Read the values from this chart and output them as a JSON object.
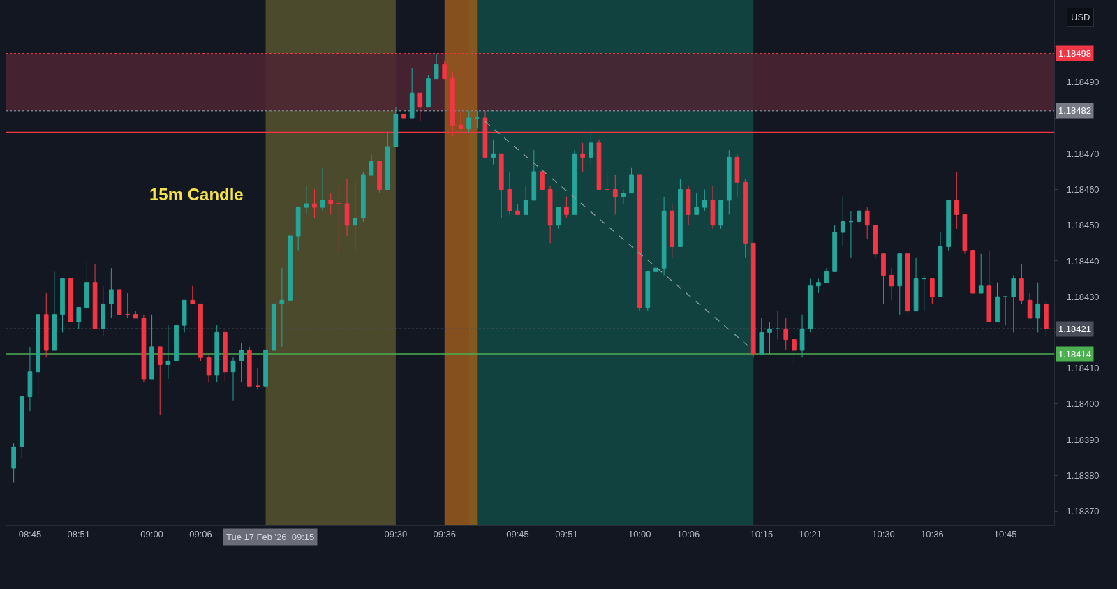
{
  "chart_data": {
    "type": "candlestick",
    "x": [
      "2026-02-17T08:43",
      "2026-02-17T08:44",
      "2026-02-17T08:45",
      "2026-02-17T08:46",
      "2026-02-17T08:47",
      "2026-02-17T08:48",
      "2026-02-17T08:49",
      "2026-02-17T08:50",
      "2026-02-17T08:51",
      "2026-02-17T08:52",
      "2026-02-17T08:53",
      "2026-02-17T08:54",
      "2026-02-17T08:55",
      "2026-02-17T08:56",
      "2026-02-17T08:57",
      "2026-02-17T08:58",
      "2026-02-17T08:59",
      "2026-02-17T09:00",
      "2026-02-17T09:01",
      "2026-02-17T09:02",
      "2026-02-17T09:03",
      "2026-02-17T09:04",
      "2026-02-17T09:05",
      "2026-02-17T09:06",
      "2026-02-17T09:07",
      "2026-02-17T09:08",
      "2026-02-17T09:09",
      "2026-02-17T09:10",
      "2026-02-17T09:11",
      "2026-02-17T09:12",
      "2026-02-17T09:13",
      "2026-02-17T09:14",
      "2026-02-17T09:15",
      "2026-02-17T09:16",
      "2026-02-17T09:17",
      "2026-02-17T09:18",
      "2026-02-17T09:19",
      "2026-02-17T09:20",
      "2026-02-17T09:21",
      "2026-02-17T09:22",
      "2026-02-17T09:23",
      "2026-02-17T09:24",
      "2026-02-17T09:25",
      "2026-02-17T09:26",
      "2026-02-17T09:27",
      "2026-02-17T09:28",
      "2026-02-17T09:29",
      "2026-02-17T09:30",
      "2026-02-17T09:31",
      "2026-02-17T09:32",
      "2026-02-17T09:33",
      "2026-02-17T09:34",
      "2026-02-17T09:35",
      "2026-02-17T09:36",
      "2026-02-17T09:37",
      "2026-02-17T09:38",
      "2026-02-17T09:39",
      "2026-02-17T09:40",
      "2026-02-17T09:41",
      "2026-02-17T09:42",
      "2026-02-17T09:43",
      "2026-02-17T09:44",
      "2026-02-17T09:45",
      "2026-02-17T09:46",
      "2026-02-17T09:47",
      "2026-02-17T09:48",
      "2026-02-17T09:49",
      "2026-02-17T09:50",
      "2026-02-17T09:51",
      "2026-02-17T09:52",
      "2026-02-17T09:53",
      "2026-02-17T09:54",
      "2026-02-17T09:55",
      "2026-02-17T09:56",
      "2026-02-17T09:57",
      "2026-02-17T09:58",
      "2026-02-17T09:59",
      "2026-02-17T10:00",
      "2026-02-17T10:01",
      "2026-02-17T10:02",
      "2026-02-17T10:03",
      "2026-02-17T10:04",
      "2026-02-17T10:05",
      "2026-02-17T10:06",
      "2026-02-17T10:07",
      "2026-02-17T10:08",
      "2026-02-17T10:09",
      "2026-02-17T10:10",
      "2026-02-17T10:11",
      "2026-02-17T10:12",
      "2026-02-17T10:13",
      "2026-02-17T10:14",
      "2026-02-17T10:15",
      "2026-02-17T10:16",
      "2026-02-17T10:17",
      "2026-02-17T10:18",
      "2026-02-17T10:19",
      "2026-02-17T10:20",
      "2026-02-17T10:21",
      "2026-02-17T10:22",
      "2026-02-17T10:23",
      "2026-02-17T10:24",
      "2026-02-17T10:25",
      "2026-02-17T10:26",
      "2026-02-17T10:27",
      "2026-02-17T10:28",
      "2026-02-17T10:29",
      "2026-02-17T10:30",
      "2026-02-17T10:31",
      "2026-02-17T10:32",
      "2026-02-17T10:33",
      "2026-02-17T10:34",
      "2026-02-17T10:35",
      "2026-02-17T10:36",
      "2026-02-17T10:37",
      "2026-02-17T10:38",
      "2026-02-17T10:39",
      "2026-02-17T10:40",
      "2026-02-17T10:41",
      "2026-02-17T10:42",
      "2026-02-17T10:43",
      "2026-02-17T10:44",
      "2026-02-17T10:45",
      "2026-02-17T10:46",
      "2026-02-17T10:47",
      "2026-02-17T10:48",
      "2026-02-17T10:49",
      "2026-02-17T10:50"
    ],
    "ohlc": [
      [
        1.18382,
        1.18389,
        1.18378,
        1.18388
      ],
      [
        1.18388,
        1.18402,
        1.18385,
        1.18402
      ],
      [
        1.18402,
        1.18416,
        1.18398,
        1.18409
      ],
      [
        1.18409,
        1.18425,
        1.18401,
        1.18425
      ],
      [
        1.18425,
        1.18431,
        1.18413,
        1.18415
      ],
      [
        1.18415,
        1.18437,
        1.18415,
        1.18425
      ],
      [
        1.18425,
        1.18435,
        1.1842,
        1.18435
      ],
      [
        1.18435,
        1.18435,
        1.18423,
        1.18423
      ],
      [
        1.18423,
        1.18427,
        1.18421,
        1.18427
      ],
      [
        1.18427,
        1.1844,
        1.18427,
        1.18434
      ],
      [
        1.18434,
        1.18439,
        1.18421,
        1.18421
      ],
      [
        1.18421,
        1.18433,
        1.18419,
        1.18428
      ],
      [
        1.18428,
        1.18438,
        1.18424,
        1.18432
      ],
      [
        1.18432,
        1.18432,
        1.18425,
        1.18425
      ],
      [
        1.18425,
        1.18431,
        1.18424,
        1.18425
      ],
      [
        1.18425,
        1.18426,
        1.18424,
        1.18424
      ],
      [
        1.18424,
        1.18425,
        1.18406,
        1.18407
      ],
      [
        1.18407,
        1.18425,
        1.18407,
        1.18416
      ],
      [
        1.18416,
        1.18416,
        1.18397,
        1.18411
      ],
      [
        1.18411,
        1.18422,
        1.18407,
        1.18412
      ],
      [
        1.18412,
        1.18422,
        1.18412,
        1.18422
      ],
      [
        1.18422,
        1.18429,
        1.1842,
        1.18429
      ],
      [
        1.18429,
        1.18433,
        1.18428,
        1.18428
      ],
      [
        1.18428,
        1.18428,
        1.18412,
        1.18413
      ],
      [
        1.18413,
        1.18414,
        1.18406,
        1.18408
      ],
      [
        1.18408,
        1.18422,
        1.18406,
        1.1842
      ],
      [
        1.1842,
        1.18421,
        1.18406,
        1.18409
      ],
      [
        1.18409,
        1.18413,
        1.18401,
        1.18412
      ],
      [
        1.18412,
        1.18417,
        1.18406,
        1.18415
      ],
      [
        1.18415,
        1.18416,
        1.18405,
        1.18405
      ],
      [
        1.18405,
        1.1841,
        1.18404,
        1.18405
      ],
      [
        1.18405,
        1.18415,
        1.18405,
        1.18415
      ],
      [
        1.18415,
        1.18428,
        1.18415,
        1.18428
      ],
      [
        1.18428,
        1.18438,
        1.18416,
        1.18429
      ],
      [
        1.18429,
        1.18452,
        1.18429,
        1.18447
      ],
      [
        1.18447,
        1.18455,
        1.18443,
        1.18455
      ],
      [
        1.18455,
        1.18461,
        1.18453,
        1.18456
      ],
      [
        1.18456,
        1.1846,
        1.18452,
        1.18455
      ],
      [
        1.18455,
        1.18466,
        1.18454,
        1.18457
      ],
      [
        1.18457,
        1.18459,
        1.18453,
        1.18456
      ],
      [
        1.18456,
        1.18461,
        1.18442,
        1.18456
      ],
      [
        1.18456,
        1.18463,
        1.18447,
        1.1845
      ],
      [
        1.1845,
        1.18462,
        1.18443,
        1.18452
      ],
      [
        1.18452,
        1.18465,
        1.18451,
        1.18464
      ],
      [
        1.18464,
        1.1847,
        1.18464,
        1.18468
      ],
      [
        1.18468,
        1.18468,
        1.18459,
        1.1846
      ],
      [
        1.1846,
        1.18476,
        1.1846,
        1.18472
      ],
      [
        1.18472,
        1.18483,
        1.18472,
        1.18481
      ],
      [
        1.18481,
        1.18482,
        1.18477,
        1.1848
      ],
      [
        1.1848,
        1.18494,
        1.1848,
        1.18487
      ],
      [
        1.18487,
        1.18487,
        1.18479,
        1.18483
      ],
      [
        1.18483,
        1.18492,
        1.18483,
        1.18491
      ],
      [
        1.18491,
        1.18498,
        1.18491,
        1.18495
      ],
      [
        1.18495,
        1.18496,
        1.18491,
        1.18491
      ],
      [
        1.18491,
        1.18493,
        1.18475,
        1.18478
      ],
      [
        1.18478,
        1.18482,
        1.18477,
        1.18477
      ],
      [
        1.18477,
        1.18482,
        1.18476,
        1.1848
      ],
      [
        1.1848,
        1.18482,
        1.18477,
        1.1848
      ],
      [
        1.1848,
        1.18482,
        1.18469,
        1.18469
      ],
      [
        1.18469,
        1.18474,
        1.18467,
        1.1847
      ],
      [
        1.1847,
        1.1847,
        1.18452,
        1.1846
      ],
      [
        1.1846,
        1.18465,
        1.18453,
        1.18454
      ],
      [
        1.18454,
        1.18456,
        1.18453,
        1.18453
      ],
      [
        1.18453,
        1.18461,
        1.18453,
        1.18457
      ],
      [
        1.18457,
        1.18471,
        1.18457,
        1.18465
      ],
      [
        1.18465,
        1.18475,
        1.1846,
        1.1846
      ],
      [
        1.1846,
        1.18461,
        1.18445,
        1.1845
      ],
      [
        1.1845,
        1.18455,
        1.18449,
        1.18455
      ],
      [
        1.18455,
        1.18458,
        1.18452,
        1.18453
      ],
      [
        1.18453,
        1.18471,
        1.18453,
        1.1847
      ],
      [
        1.1847,
        1.18473,
        1.18465,
        1.18469
      ],
      [
        1.18469,
        1.18476,
        1.18467,
        1.18473
      ],
      [
        1.18473,
        1.18474,
        1.1846,
        1.1846
      ],
      [
        1.1846,
        1.18465,
        1.18459,
        1.1846
      ],
      [
        1.1846,
        1.18464,
        1.18453,
        1.18458
      ],
      [
        1.18458,
        1.1846,
        1.18456,
        1.18459
      ],
      [
        1.18459,
        1.18466,
        1.18459,
        1.18464
      ],
      [
        1.18464,
        1.18464,
        1.18426,
        1.18427
      ],
      [
        1.18427,
        1.18437,
        1.18426,
        1.18437
      ],
      [
        1.18437,
        1.18438,
        1.18428,
        1.18438
      ],
      [
        1.18438,
        1.18458,
        1.18436,
        1.18454
      ],
      [
        1.18454,
        1.18456,
        1.18441,
        1.18444
      ],
      [
        1.18444,
        1.18463,
        1.18444,
        1.1846
      ],
      [
        1.1846,
        1.18461,
        1.1845,
        1.18453
      ],
      [
        1.18453,
        1.18459,
        1.18453,
        1.18455
      ],
      [
        1.18455,
        1.1846,
        1.18454,
        1.18457
      ],
      [
        1.18457,
        1.18461,
        1.18449,
        1.1845
      ],
      [
        1.1845,
        1.18457,
        1.18449,
        1.18457
      ],
      [
        1.18457,
        1.18471,
        1.18453,
        1.18469
      ],
      [
        1.18469,
        1.1847,
        1.18458,
        1.18462
      ],
      [
        1.18462,
        1.18463,
        1.18441,
        1.18445
      ],
      [
        1.18445,
        1.18445,
        1.18413,
        1.18414
      ],
      [
        1.18414,
        1.18424,
        1.18414,
        1.1842
      ],
      [
        1.1842,
        1.18423,
        1.18414,
        1.18421
      ],
      [
        1.18421,
        1.18426,
        1.18418,
        1.18421
      ],
      [
        1.18421,
        1.18424,
        1.18415,
        1.18418
      ],
      [
        1.18418,
        1.18418,
        1.18411,
        1.18415
      ],
      [
        1.18415,
        1.18425,
        1.18413,
        1.18421
      ],
      [
        1.18421,
        1.18435,
        1.1842,
        1.18433
      ],
      [
        1.18433,
        1.18435,
        1.18431,
        1.18434
      ],
      [
        1.18434,
        1.18438,
        1.18434,
        1.18437
      ],
      [
        1.18437,
        1.1845,
        1.18437,
        1.18448
      ],
      [
        1.18448,
        1.18458,
        1.18444,
        1.18451
      ],
      [
        1.18451,
        1.18454,
        1.18441,
        1.18451
      ],
      [
        1.18451,
        1.18456,
        1.18449,
        1.18454
      ],
      [
        1.18454,
        1.18455,
        1.18446,
        1.1845
      ],
      [
        1.1845,
        1.1845,
        1.18441,
        1.18442
      ],
      [
        1.18442,
        1.18442,
        1.18428,
        1.18436
      ],
      [
        1.18436,
        1.18438,
        1.18429,
        1.18433
      ],
      [
        1.18433,
        1.18442,
        1.18425,
        1.18442
      ],
      [
        1.18442,
        1.18442,
        1.18425,
        1.18426
      ],
      [
        1.18426,
        1.18441,
        1.18426,
        1.18435
      ],
      [
        1.18435,
        1.18436,
        1.18426,
        1.18435
      ],
      [
        1.18435,
        1.18435,
        1.18428,
        1.1843
      ],
      [
        1.1843,
        1.18448,
        1.1843,
        1.18444
      ],
      [
        1.18444,
        1.18457,
        1.18443,
        1.18457
      ],
      [
        1.18457,
        1.18465,
        1.18449,
        1.18453
      ],
      [
        1.18453,
        1.18453,
        1.18442,
        1.18443
      ],
      [
        1.18443,
        1.18443,
        1.18431,
        1.18431
      ],
      [
        1.18431,
        1.18442,
        1.18431,
        1.18433
      ],
      [
        1.18433,
        1.18443,
        1.18423,
        1.18423
      ],
      [
        1.18423,
        1.18434,
        1.18423,
        1.1843
      ],
      [
        1.1843,
        1.1843,
        1.18422,
        1.1843
      ],
      [
        1.1843,
        1.18436,
        1.1842,
        1.18435
      ],
      [
        1.18435,
        1.18439,
        1.18428,
        1.18429
      ],
      [
        1.18429,
        1.18431,
        1.18424,
        1.18424
      ],
      [
        1.18424,
        1.18434,
        1.1842,
        1.18428
      ],
      [
        1.18428,
        1.18429,
        1.18419,
        1.18421
      ]
    ],
    "xlim": [
      "2026-02-17T08:42",
      "2026-02-17T10:51"
    ],
    "xticks": [
      {
        "value": "2026-02-17T08:45",
        "label": "08:45"
      },
      {
        "value": "2026-02-17T08:51",
        "label": "08:51"
      },
      {
        "value": "2026-02-17T09:00",
        "label": "09:00"
      },
      {
        "value": "2026-02-17T09:06",
        "label": "09:06"
      },
      {
        "value": "2026-02-17T09:30",
        "label": "09:30"
      },
      {
        "value": "2026-02-17T09:36",
        "label": "09:36"
      },
      {
        "value": "2026-02-17T09:45",
        "label": "09:45"
      },
      {
        "value": "2026-02-17T09:51",
        "label": "09:51"
      },
      {
        "value": "2026-02-17T10:00",
        "label": "10:00"
      },
      {
        "value": "2026-02-17T10:06",
        "label": "10:06"
      },
      {
        "value": "2026-02-17T10:15",
        "label": "10:15"
      },
      {
        "value": "2026-02-17T10:21",
        "label": "10:21"
      },
      {
        "value": "2026-02-17T10:30",
        "label": "10:30"
      },
      {
        "value": "2026-02-17T10:36",
        "label": "10:36"
      },
      {
        "value": "2026-02-17T10:45",
        "label": "10:45"
      }
    ],
    "ylim": [
      1.18366,
      1.18513
    ],
    "yticks": [
      {
        "value": 1.1837,
        "label": "1.18370"
      },
      {
        "value": 1.1838,
        "label": "1.18380"
      },
      {
        "value": 1.1839,
        "label": "1.18390"
      },
      {
        "value": 1.184,
        "label": "1.18400"
      },
      {
        "value": 1.1841,
        "label": "1.18410"
      },
      {
        "value": 1.1842,
        "label": null
      },
      {
        "value": 1.1843,
        "label": "1.18430"
      },
      {
        "value": 1.1844,
        "label": "1.18440"
      },
      {
        "value": 1.1845,
        "label": "1.18450"
      },
      {
        "value": 1.1846,
        "label": "1.18460"
      },
      {
        "value": 1.1847,
        "label": "1.18470"
      },
      {
        "value": 1.1848,
        "label": null
      },
      {
        "value": 1.1849,
        "label": "1.18490"
      },
      {
        "value": 1.185,
        "label": null
      }
    ],
    "series": [
      {
        "type": "line",
        "x": [
          "2026-02-17T09:41",
          "2026-02-17T10:14"
        ],
        "values": [
          1.18479,
          1.18415
        ],
        "color": "#8fa3a0",
        "line_style": "dashed"
      }
    ],
    "bands": [
      {
        "axis": "x",
        "from": "2026-02-17T09:14",
        "to": "2026-02-17T09:30",
        "color": "#57532e",
        "label": "15m Candle"
      },
      {
        "axis": "x",
        "from": "2026-02-17T09:39",
        "to": "2026-02-17T10:14",
        "color": "#134a45"
      },
      {
        "axis": "y",
        "from": 1.18482,
        "to": 1.18498,
        "color": "#4e2433"
      },
      {
        "axis": "x",
        "from": "2026-02-17T09:36",
        "to": "2026-02-17T09:40",
        "color": "#9a5a1c"
      }
    ],
    "ref_lines": [
      {
        "axis": "y",
        "value": 1.18498,
        "label": "1.18498",
        "color": "#f23645",
        "line_style": "dotted"
      },
      {
        "axis": "y",
        "value": 1.18482,
        "label": "1.18482",
        "color": "#787b86",
        "line_style": "dotted"
      },
      {
        "axis": "y",
        "value": 1.18476,
        "color": "#f23645",
        "line_style": "solid"
      },
      {
        "axis": "y",
        "value": 1.18421,
        "label": "1.18421",
        "color": "#4a4e5a",
        "line_style": "dotted"
      },
      {
        "axis": "y",
        "value": 1.18414,
        "label": "1.18414",
        "color": "#4caf50",
        "line_style": "solid"
      }
    ],
    "annotations": [
      "USD",
      "Tue 17 Feb '26  09:15"
    ]
  }
}
